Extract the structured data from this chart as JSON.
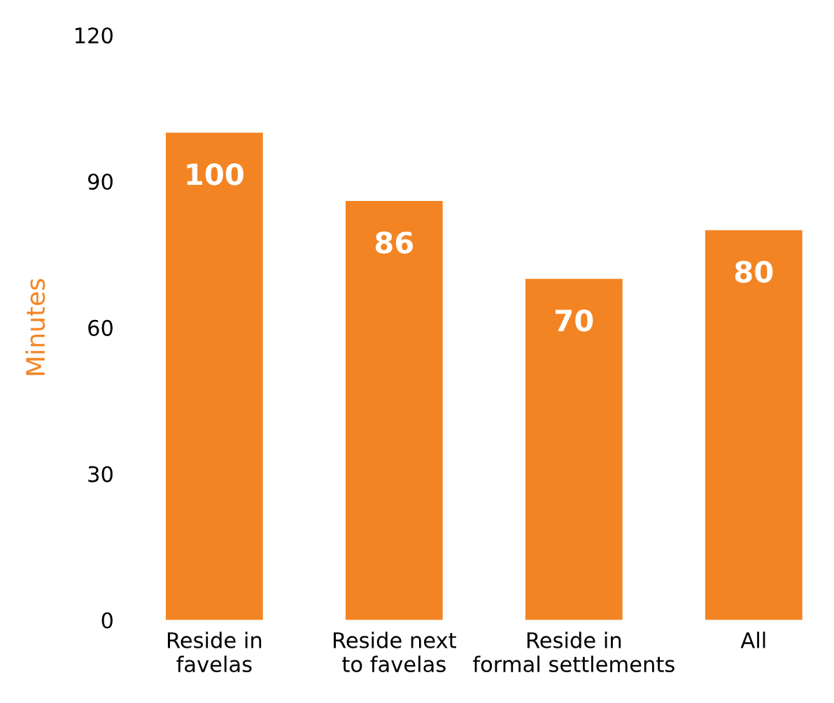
{
  "chart_data": {
    "type": "bar",
    "ylabel": "Minutes",
    "categories": [
      "Reside in\nfavelas",
      "Reside next\nto favelas",
      "Reside in\nformal settlements",
      "All"
    ],
    "values": [
      100,
      86,
      70,
      80
    ],
    "color": "#f38423",
    "ylim": [
      0,
      120
    ],
    "yticks": [
      0,
      30,
      60,
      90,
      120
    ],
    "grid": false,
    "data_labels": true
  }
}
